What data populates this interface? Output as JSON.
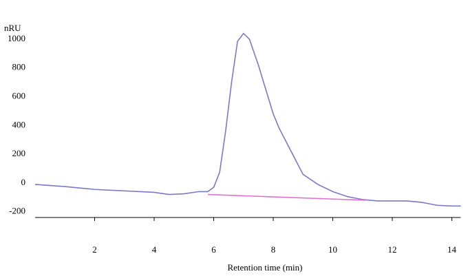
{
  "chart_data": {
    "type": "line",
    "y_label": "nRU",
    "x_label": "Retention time (min)",
    "xlim": [
      0,
      14.3
    ],
    "ylim": [
      -240,
      1100
    ],
    "xticks": [
      2,
      4,
      6,
      8,
      10,
      12,
      14
    ],
    "yticks": [
      -200,
      0,
      200,
      400,
      600,
      800,
      1000
    ],
    "series": [
      {
        "color": "#7b78c9",
        "x": [
          0,
          1,
          2,
          3,
          4,
          4.5,
          5,
          5.5,
          5.8,
          6,
          6.2,
          6.4,
          6.6,
          6.8,
          7.0,
          7.2,
          7.5,
          8,
          8.2,
          8.5,
          9,
          9.5,
          10,
          10.5,
          11,
          11.5,
          12,
          12.5,
          13,
          13.5,
          14,
          14.3
        ],
        "values": [
          -10,
          -25,
          -45,
          -55,
          -65,
          -80,
          -75,
          -60,
          -60,
          -30,
          75,
          360,
          700,
          985,
          1040,
          1000,
          820,
          480,
          380,
          260,
          60,
          -10,
          -60,
          -95,
          -115,
          -125,
          -125,
          -125,
          -135,
          -155,
          -160,
          -160
        ]
      },
      {
        "color": "#e070d0",
        "x": [
          5.8,
          11.1
        ],
        "values": [
          -80,
          -120
        ]
      }
    ]
  }
}
